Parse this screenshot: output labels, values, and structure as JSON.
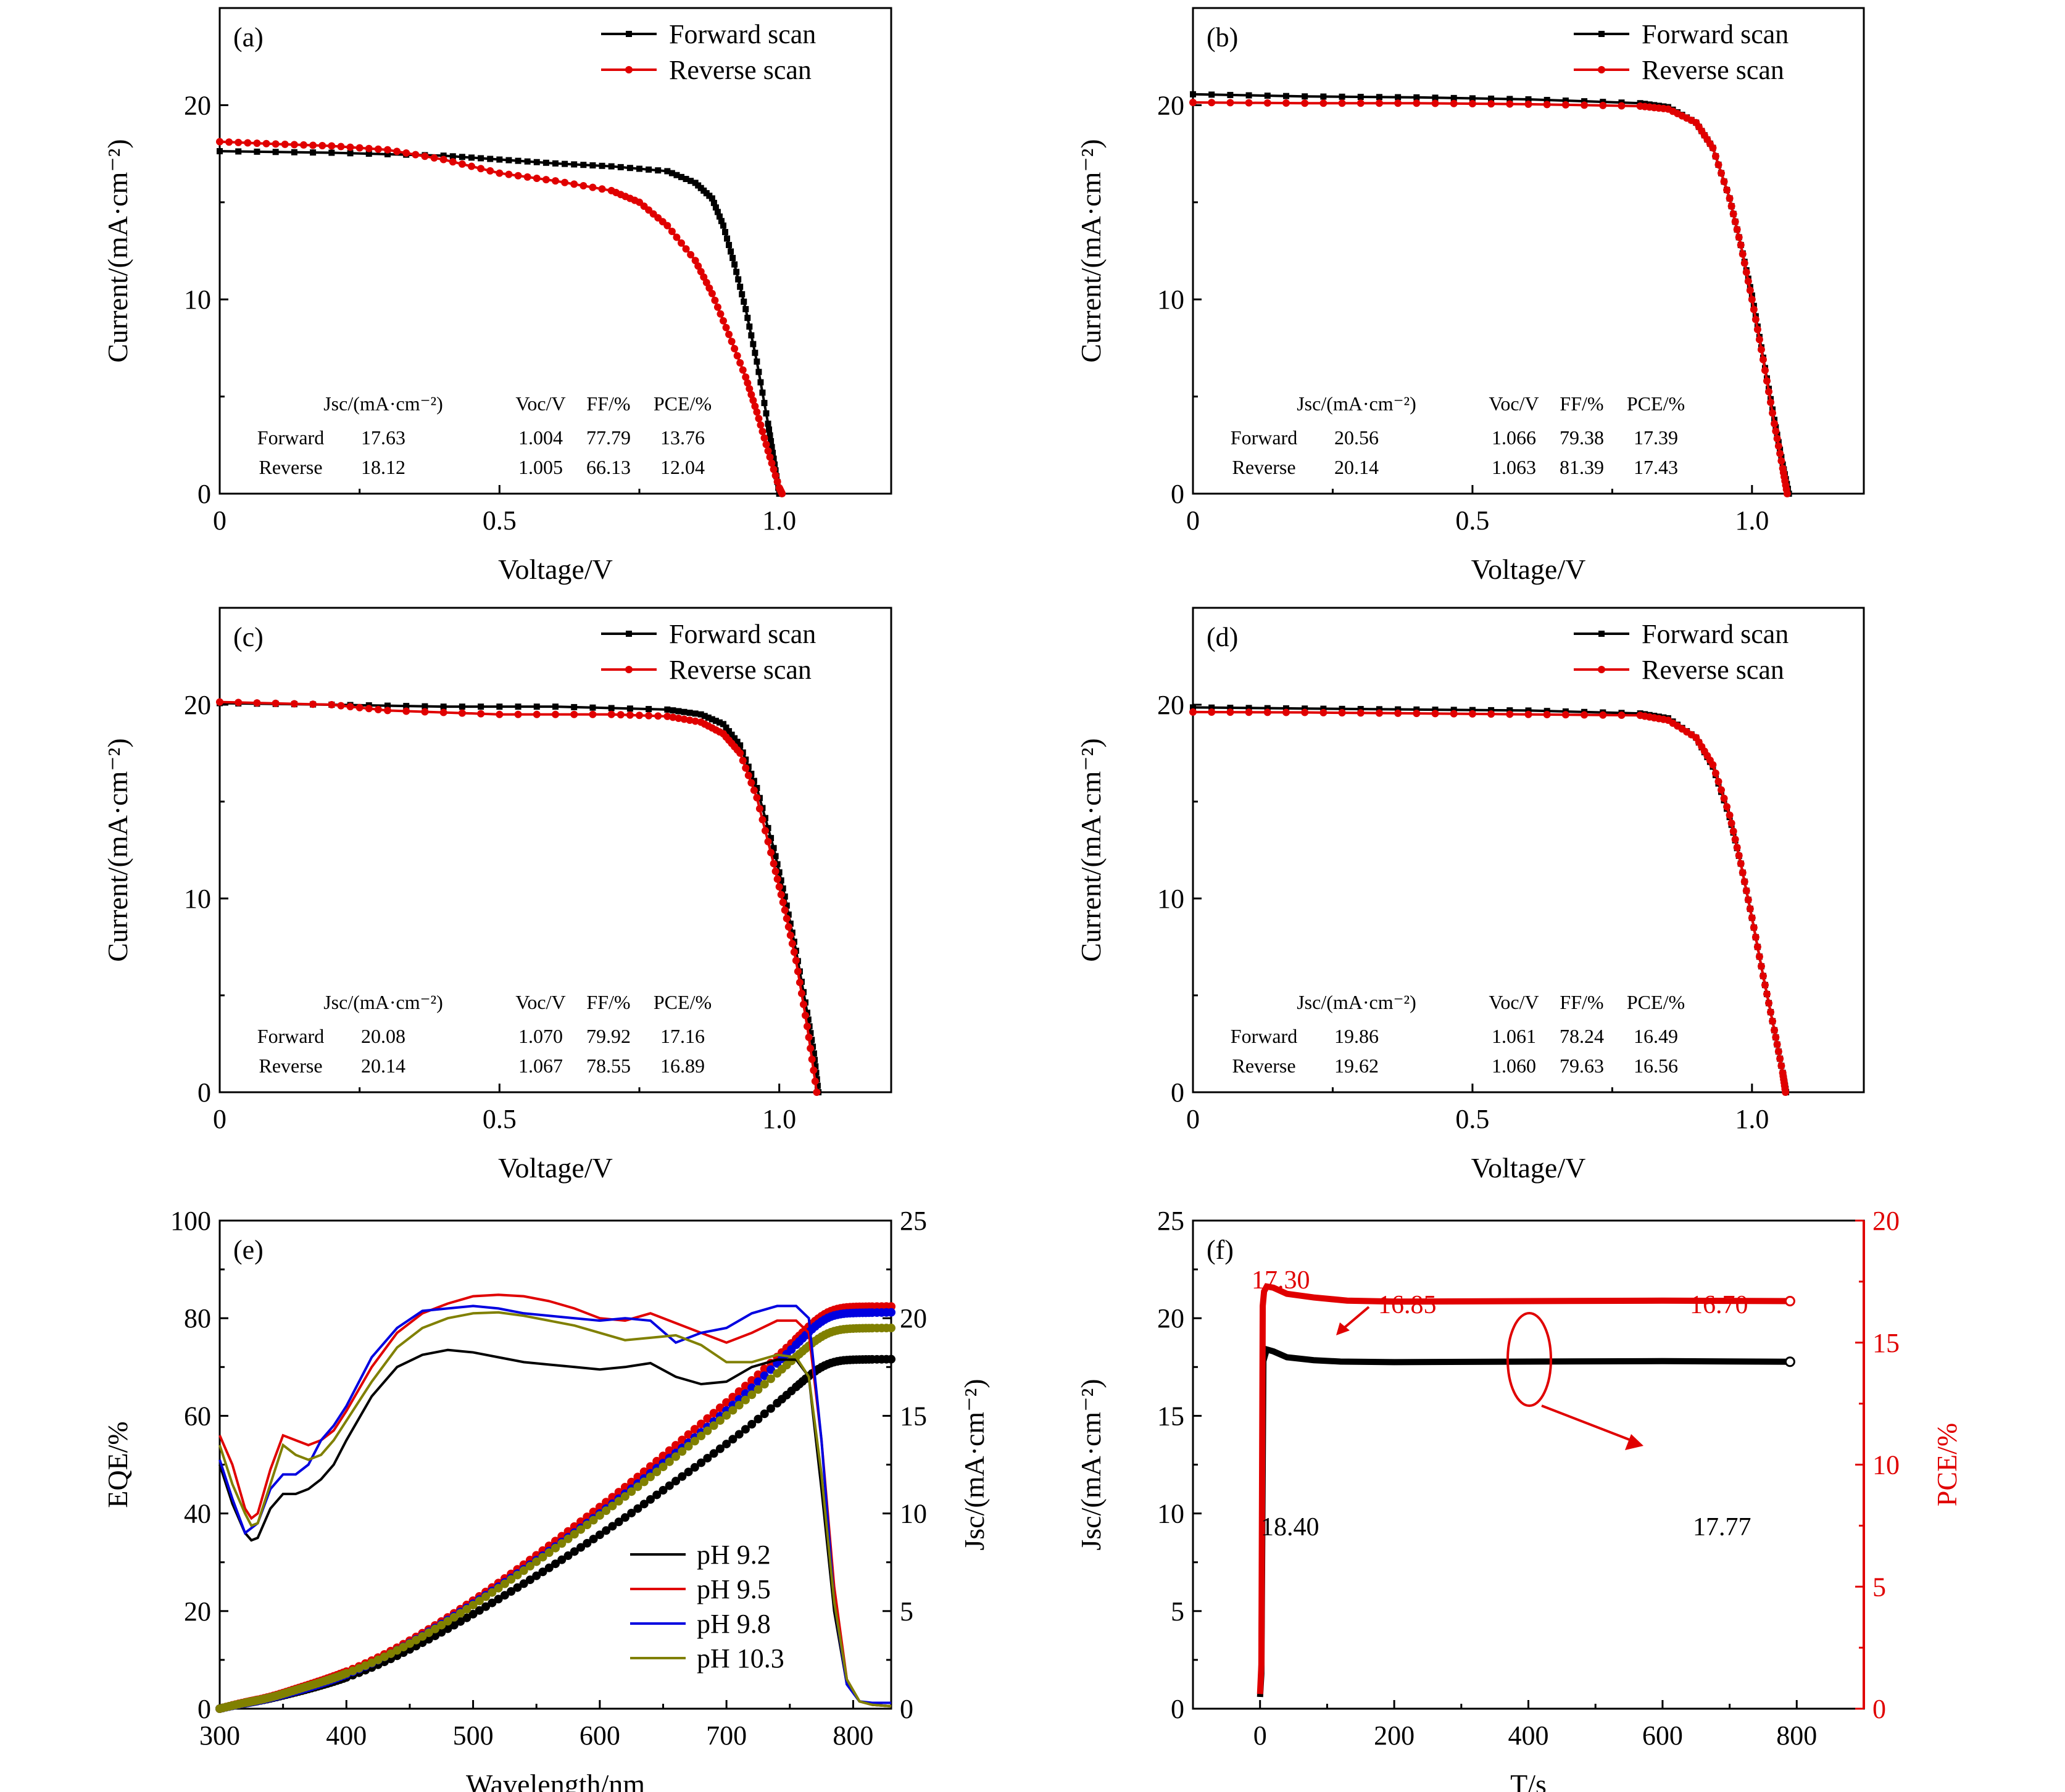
{
  "chart_data": [
    {
      "id": "a",
      "type": "line",
      "panel_label": "(a)",
      "xlabel": "Voltage/V",
      "ylabel": "Current/(mA·cm⁻²)",
      "xlim": [
        0,
        1.2
      ],
      "ylim": [
        0,
        25
      ],
      "xticks": [
        0,
        0.5,
        1.0
      ],
      "xtick_labels": [
        "0",
        "0.5",
        "1.0"
      ],
      "yticks": [
        0,
        10,
        20
      ],
      "ytick_labels": [
        "0",
        "10",
        "20"
      ],
      "legend": {
        "position": "top-right",
        "entries": [
          "Forward scan",
          "Reverse scan"
        ]
      },
      "series": [
        {
          "name": "Forward scan",
          "color": "#000000",
          "marker": "square",
          "x": [
            0,
            0.2,
            0.4,
            0.5,
            0.6,
            0.7,
            0.8,
            0.85,
            0.88,
            0.9,
            0.92,
            0.94,
            0.96,
            0.98,
            0.99,
            1.0
          ],
          "y": [
            17.63,
            17.55,
            17.4,
            17.2,
            17.0,
            16.85,
            16.6,
            16.0,
            15.2,
            13.8,
            11.8,
            9.5,
            6.8,
            3.6,
            1.8,
            0
          ]
        },
        {
          "name": "Reverse scan",
          "color": "#e00000",
          "marker": "circle",
          "x": [
            0,
            0.1,
            0.2,
            0.3,
            0.4,
            0.5,
            0.6,
            0.7,
            0.75,
            0.8,
            0.85,
            0.88,
            0.91,
            0.94,
            0.96,
            0.98,
            1.0,
            1.005
          ],
          "y": [
            18.12,
            18.0,
            17.9,
            17.7,
            17.2,
            16.5,
            16.1,
            15.6,
            15.0,
            13.8,
            12.0,
            10.3,
            8.2,
            6.0,
            4.2,
            2.2,
            0.3,
            0
          ]
        }
      ],
      "table": {
        "headers": [
          "",
          "Jsc/(mA·cm⁻²)",
          "Voc/V",
          "FF/%",
          "PCE/%"
        ],
        "rows": [
          [
            "Forward",
            "17.63",
            "1.004",
            "77.79",
            "13.76"
          ],
          [
            "Reverse",
            "18.12",
            "1.005",
            "66.13",
            "12.04"
          ]
        ]
      }
    },
    {
      "id": "b",
      "type": "line",
      "panel_label": "(b)",
      "xlabel": "Voltage/V",
      "ylabel": "Current/(mA·cm⁻²)",
      "xlim": [
        0,
        1.2
      ],
      "ylim": [
        0,
        25
      ],
      "xticks": [
        0,
        0.5,
        1.0
      ],
      "xtick_labels": [
        "0",
        "0.5",
        "1.0"
      ],
      "yticks": [
        0,
        10,
        20
      ],
      "ytick_labels": [
        "0",
        "10",
        "20"
      ],
      "legend": {
        "position": "top-right",
        "entries": [
          "Forward scan",
          "Reverse scan"
        ]
      },
      "series": [
        {
          "name": "Forward scan",
          "color": "#000000",
          "marker": "square",
          "x": [
            0,
            0.2,
            0.4,
            0.6,
            0.8,
            0.85,
            0.9,
            0.93,
            0.96,
            0.98,
            1.0,
            1.02,
            1.04,
            1.055,
            1.066
          ],
          "y": [
            20.56,
            20.45,
            20.4,
            20.3,
            20.1,
            19.9,
            19.1,
            17.8,
            15.2,
            12.8,
            10.2,
            7.0,
            3.8,
            1.5,
            0
          ]
        },
        {
          "name": "Reverse scan",
          "color": "#e00000",
          "marker": "circle",
          "x": [
            0,
            0.2,
            0.4,
            0.6,
            0.8,
            0.85,
            0.9,
            0.93,
            0.96,
            0.98,
            1.0,
            1.02,
            1.04,
            1.055,
            1.063
          ],
          "y": [
            20.14,
            20.1,
            20.1,
            20.05,
            19.95,
            19.8,
            19.1,
            17.8,
            15.2,
            12.8,
            10.0,
            6.9,
            3.6,
            1.3,
            0
          ]
        }
      ],
      "table": {
        "headers": [
          "",
          "Jsc/(mA·cm⁻²)",
          "Voc/V",
          "FF/%",
          "PCE/%"
        ],
        "rows": [
          [
            "Forward",
            "20.56",
            "1.066",
            "79.38",
            "17.39"
          ],
          [
            "Reverse",
            "20.14",
            "1.063",
            "81.39",
            "17.43"
          ]
        ]
      }
    },
    {
      "id": "c",
      "type": "line",
      "panel_label": "(c)",
      "xlabel": "Voltage/V",
      "ylabel": "Current/(mA·cm⁻²)",
      "xlim": [
        0,
        1.2
      ],
      "ylim": [
        0,
        25
      ],
      "xticks": [
        0,
        0.5,
        1.0
      ],
      "xtick_labels": [
        "0",
        "0.5",
        "1.0"
      ],
      "yticks": [
        0,
        10,
        20
      ],
      "ytick_labels": [
        "0",
        "10",
        "20"
      ],
      "legend": {
        "position": "top-right",
        "entries": [
          "Forward scan",
          "Reverse scan"
        ]
      },
      "series": [
        {
          "name": "Forward scan",
          "color": "#000000",
          "marker": "square",
          "x": [
            0,
            0.2,
            0.4,
            0.6,
            0.8,
            0.86,
            0.9,
            0.93,
            0.96,
            0.99,
            1.01,
            1.03,
            1.05,
            1.062,
            1.07
          ],
          "y": [
            20.08,
            20.0,
            19.9,
            19.9,
            19.75,
            19.5,
            19.0,
            17.9,
            15.7,
            12.6,
            10.1,
            7.3,
            4.1,
            2.0,
            0
          ]
        },
        {
          "name": "Reverse scan",
          "color": "#e00000",
          "marker": "circle",
          "x": [
            0,
            0.2,
            0.3,
            0.5,
            0.7,
            0.8,
            0.86,
            0.9,
            0.93,
            0.96,
            0.99,
            1.01,
            1.03,
            1.05,
            1.067
          ],
          "y": [
            20.14,
            20.0,
            19.7,
            19.5,
            19.5,
            19.4,
            19.1,
            18.5,
            17.5,
            15.2,
            11.8,
            9.4,
            6.8,
            3.4,
            0
          ]
        }
      ],
      "table": {
        "headers": [
          "",
          "Jsc/(mA·cm⁻²)",
          "Voc/V",
          "FF/%",
          "PCE/%"
        ],
        "rows": [
          [
            "Forward",
            "20.08",
            "1.070",
            "79.92",
            "17.16"
          ],
          [
            "Reverse",
            "20.14",
            "1.067",
            "78.55",
            "16.89"
          ]
        ]
      }
    },
    {
      "id": "d",
      "type": "line",
      "panel_label": "(d)",
      "xlabel": "Voltage/V",
      "ylabel": "Current/(mA·cm⁻²)",
      "xlim": [
        0,
        1.2
      ],
      "ylim": [
        0,
        25
      ],
      "xticks": [
        0,
        0.5,
        1.0
      ],
      "xtick_labels": [
        "0",
        "0.5",
        "1.0"
      ],
      "yticks": [
        0,
        10,
        20
      ],
      "ytick_labels": [
        "0",
        "10",
        "20"
      ],
      "legend": {
        "position": "top-right",
        "entries": [
          "Forward scan",
          "Reverse scan"
        ]
      },
      "series": [
        {
          "name": "Forward scan",
          "color": "#000000",
          "marker": "square",
          "x": [
            0,
            0.2,
            0.4,
            0.6,
            0.8,
            0.85,
            0.9,
            0.93,
            0.96,
            0.98,
            1.0,
            1.02,
            1.04,
            1.055,
            1.061
          ],
          "y": [
            19.86,
            19.8,
            19.75,
            19.7,
            19.55,
            19.3,
            18.3,
            16.8,
            14.2,
            11.8,
            9.0,
            6.0,
            3.2,
            1.0,
            0
          ]
        },
        {
          "name": "Reverse scan",
          "color": "#e00000",
          "marker": "circle",
          "x": [
            0,
            0.2,
            0.4,
            0.6,
            0.8,
            0.85,
            0.9,
            0.93,
            0.96,
            0.98,
            1.0,
            1.02,
            1.04,
            1.055,
            1.06
          ],
          "y": [
            19.62,
            19.6,
            19.55,
            19.5,
            19.45,
            19.2,
            18.3,
            16.9,
            14.3,
            11.8,
            9.0,
            6.0,
            3.2,
            1.0,
            0
          ]
        }
      ],
      "table": {
        "headers": [
          "",
          "Jsc/(mA·cm⁻²)",
          "Voc/V",
          "FF/%",
          "PCE/%"
        ],
        "rows": [
          [
            "Forward",
            "19.86",
            "1.061",
            "78.24",
            "16.49"
          ],
          [
            "Reverse",
            "19.62",
            "1.060",
            "79.63",
            "16.56"
          ]
        ]
      }
    },
    {
      "id": "e",
      "type": "line",
      "panel_label": "(e)",
      "xlabel": "Wavelength/nm",
      "ylabel": "EQE/%",
      "y2label": "Jsc/(mA·cm⁻²)",
      "xlim": [
        300,
        830
      ],
      "ylim": [
        0,
        100
      ],
      "y2lim": [
        0,
        25
      ],
      "xticks": [
        300,
        400,
        500,
        600,
        700,
        800
      ],
      "xtick_labels": [
        "300",
        "400",
        "500",
        "600",
        "700",
        "800"
      ],
      "yticks": [
        0,
        20,
        40,
        60,
        80,
        100
      ],
      "ytick_labels": [
        "0",
        "20",
        "40",
        "60",
        "80",
        "100"
      ],
      "y2ticks": [
        0,
        5,
        10,
        15,
        20,
        25
      ],
      "y2tick_labels": [
        "0",
        "5",
        "10",
        "15",
        "20",
        "25"
      ],
      "legend": {
        "position": "bottom-right",
        "entries": [
          "pH 9.2",
          "pH 9.5",
          "pH 9.8",
          "pH 10.3"
        ]
      },
      "x": [
        300,
        310,
        320,
        325,
        330,
        340,
        350,
        360,
        370,
        380,
        390,
        400,
        420,
        440,
        460,
        480,
        500,
        520,
        540,
        560,
        580,
        600,
        620,
        640,
        660,
        680,
        700,
        720,
        740,
        755,
        765,
        775,
        785,
        795,
        805,
        815,
        830
      ],
      "series": [
        {
          "name": "pH 9.2",
          "color": "#000000",
          "eqe": [
            50,
            42,
            36,
            34.5,
            35,
            41,
            44,
            44,
            45,
            47,
            50,
            55,
            64,
            70,
            72.5,
            73.5,
            73,
            72,
            71,
            70.5,
            70,
            69.5,
            70,
            70.8,
            68,
            66.5,
            67,
            70,
            71.5,
            71.5,
            68,
            45,
            20,
            5,
            1.5,
            0.8,
            0.5
          ],
          "jsc_final": 17.9
        },
        {
          "name": "pH 9.5",
          "color": "#e00000",
          "eqe": [
            56,
            50,
            41,
            39,
            40,
            49,
            56,
            55,
            54,
            55,
            57,
            61,
            70,
            77,
            81,
            83,
            84.5,
            84.8,
            84.5,
            83.5,
            82,
            80,
            79.5,
            81,
            79,
            77,
            75,
            77,
            79.5,
            79.5,
            77,
            55,
            25,
            6,
            1.5,
            0.8,
            0.5
          ],
          "jsc_final": 20.6
        },
        {
          "name": "pH 9.8",
          "color": "#0000e0",
          "eqe": [
            51,
            43,
            36,
            37,
            38,
            45,
            48,
            48,
            50,
            55,
            58,
            62,
            72,
            78,
            81.5,
            82,
            82.5,
            82,
            81,
            80.5,
            80,
            79.5,
            80,
            79.5,
            75,
            77,
            78,
            81,
            82.5,
            82.5,
            80,
            55,
            22,
            5,
            1.5,
            1.2,
            1.2
          ],
          "jsc_final": 20.3
        },
        {
          "name": "pH 10.3",
          "color": "#808000",
          "eqe": [
            54,
            46,
            40,
            37.5,
            38,
            46,
            54,
            52,
            51,
            52,
            55,
            59,
            67,
            74,
            78,
            80,
            81,
            81.2,
            80.5,
            79.5,
            78.5,
            77,
            75.5,
            76,
            76.5,
            74.5,
            71,
            71,
            72.5,
            72,
            68,
            48,
            22,
            6,
            1.5,
            0.8,
            0.5
          ],
          "jsc_final": 19.5
        }
      ]
    },
    {
      "id": "f",
      "type": "line",
      "panel_label": "(f)",
      "xlabel": "T/s",
      "ylabel": "Jsc/(mA·cm⁻²)",
      "y2label": "PCE/%",
      "xlim": [
        -100,
        900
      ],
      "ylim": [
        0,
        25
      ],
      "y2lim": [
        0,
        20
      ],
      "xticks": [
        0,
        200,
        400,
        600,
        800
      ],
      "xtick_labels": [
        "0",
        "200",
        "400",
        "600",
        "800"
      ],
      "yticks": [
        0,
        5,
        10,
        15,
        20,
        25
      ],
      "ytick_labels": [
        "0",
        "5",
        "10",
        "15",
        "20",
        "25"
      ],
      "y2ticks": [
        0,
        5,
        10,
        15,
        20
      ],
      "y2tick_labels": [
        "0",
        "5",
        "10",
        "15",
        "20"
      ],
      "series": [
        {
          "name": "Jsc",
          "color": "#000000",
          "axis": "left",
          "x": [
            0,
            2,
            5,
            10,
            20,
            40,
            80,
            120,
            200,
            400,
            600,
            790
          ],
          "y": [
            0.6,
            1.8,
            17.8,
            18.4,
            18.3,
            18.0,
            17.85,
            17.78,
            17.75,
            17.78,
            17.8,
            17.77
          ]
        },
        {
          "name": "PCE",
          "color": "#e00000",
          "axis": "right",
          "x": [
            0,
            2,
            4,
            6,
            10,
            20,
            40,
            80,
            130,
            200,
            400,
            600,
            790
          ],
          "y": [
            0.6,
            1.8,
            16.5,
            17.1,
            17.3,
            17.25,
            17.0,
            16.85,
            16.72,
            16.68,
            16.7,
            16.72,
            16.7
          ]
        }
      ],
      "annotations": [
        {
          "text": "17.30",
          "color": "#e00000"
        },
        {
          "text": "16.85",
          "color": "#e00000"
        },
        {
          "text": "16.70",
          "color": "#e00000"
        },
        {
          "text": "18.40",
          "color": "#000000"
        },
        {
          "text": "17.77",
          "color": "#000000"
        }
      ]
    }
  ]
}
